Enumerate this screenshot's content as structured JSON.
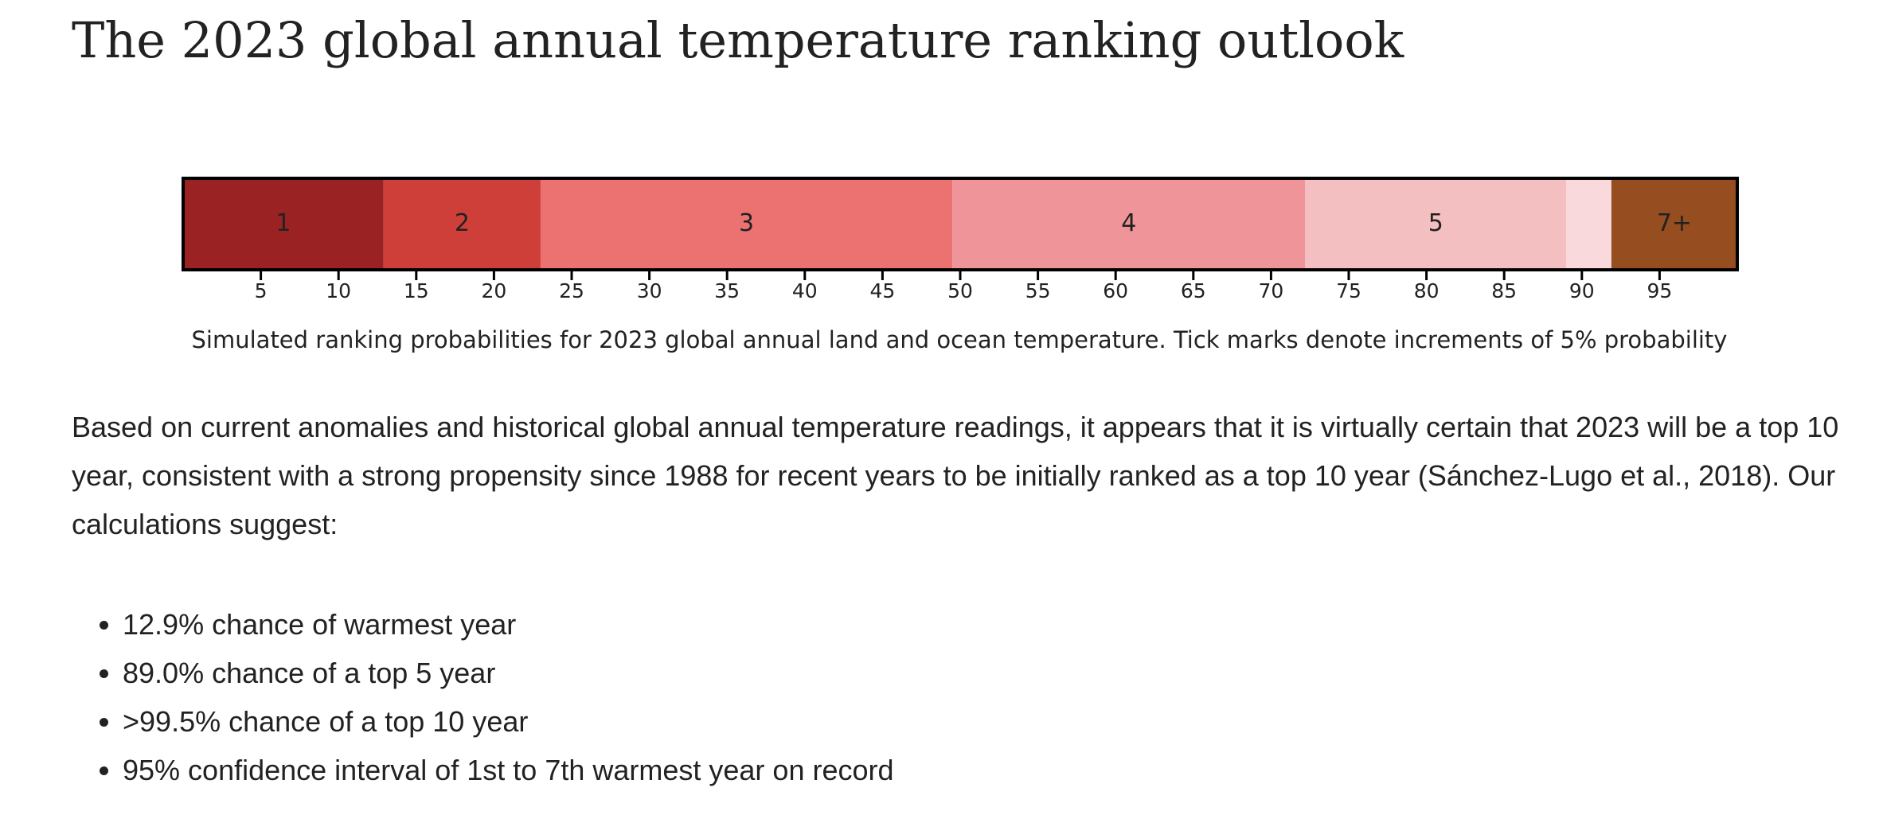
{
  "title": "The 2023 global annual temperature ranking outlook",
  "chart_data": {
    "type": "stacked-bar",
    "categories": [
      "1",
      "2",
      "3",
      "4",
      "5",
      null,
      "7+"
    ],
    "values": [
      12.9,
      10.1,
      26.5,
      22.7,
      16.8,
      2.9,
      8.1
    ],
    "colors": [
      "#9b2222",
      "#cf3f3a",
      "#ec7272",
      "#ef959a",
      "#f4bfc0",
      "#f9d9db",
      "#964d1f"
    ],
    "xlim": [
      0,
      100
    ],
    "xticks": [
      5,
      10,
      15,
      20,
      25,
      30,
      35,
      40,
      45,
      50,
      55,
      60,
      65,
      70,
      75,
      80,
      85,
      90,
      95
    ],
    "caption": "Simulated ranking probabilities for 2023 global annual land and ocean temperature. Tick marks denote increments of 5% probability"
  },
  "paragraph": "Based on current anomalies and historical global annual temperature readings, it appears that it is virtually certain that 2023 will be a top 10 year, consistent with a strong propensity since 1988 for recent years to be initially ranked as a top 10 year (Sánchez-Lugo et al., 2018). Our calculations suggest:",
  "bullets": [
    "12.9% chance of warmest year",
    "89.0% chance of a top 5 year",
    ">99.5% chance of a top 10 year",
    "95% confidence interval of 1st to 7th warmest year on record"
  ]
}
